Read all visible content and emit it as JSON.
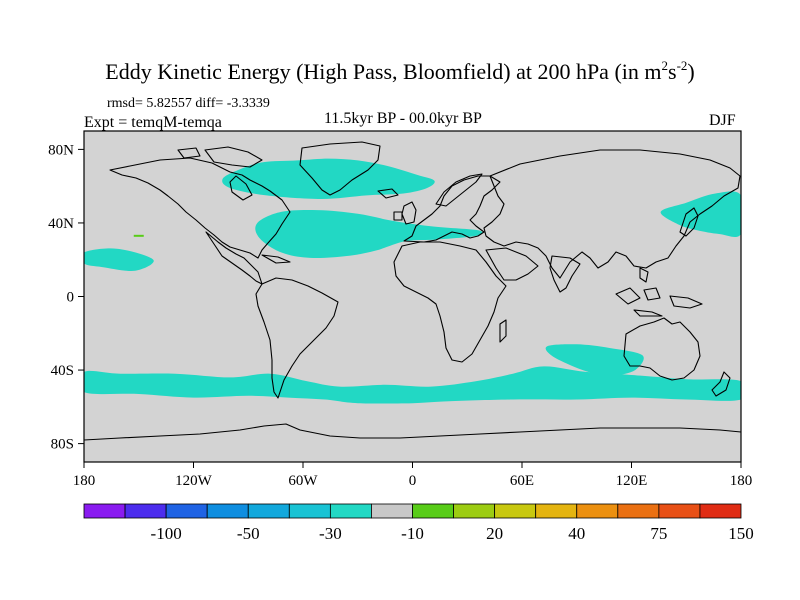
{
  "chart_data": {
    "type": "map",
    "title": "Eddy Kinetic Energy (High Pass, Bloomfield) at 200 hPa (in m",
    "title_unit_sup1": "2",
    "title_unit_mid": "s",
    "title_unit_sup2": "-2",
    "title_unit_end": ")",
    "stats_text": "rmsd= 5.82557 diff= -3.3339",
    "experiment": "Expt = temqM-temqa",
    "period": "11.5kyr BP - 00.0kyr BP",
    "season": "DJF",
    "x_ticks": [
      "180",
      "120W",
      "60W",
      "0",
      "60E",
      "120E",
      "180"
    ],
    "x_tick_values": [
      -180,
      -120,
      -60,
      0,
      60,
      120,
      180
    ],
    "y_ticks": [
      "80N",
      "40N",
      "0",
      "40S",
      "80S"
    ],
    "y_tick_values": [
      80,
      40,
      0,
      -40,
      -80
    ],
    "xlim": [
      -180,
      180
    ],
    "ylim": [
      -90,
      90
    ],
    "colorbar_labels": [
      "-100",
      "-50",
      "-30",
      "-10",
      "20",
      "40",
      "75",
      "150"
    ],
    "colorbar_colors": [
      "#8a1bf0",
      "#4c2dee",
      "#1f63e4",
      "#0f8ee0",
      "#12a8dc",
      "#19c3d4",
      "#22d8c4",
      "#c8c8c8",
      "#58cc18",
      "#9ccc12",
      "#c8c810",
      "#e4b410",
      "#ec9010",
      "#ea7012",
      "#e85016",
      "#e02c14"
    ],
    "field_background_color": "#d3d3d3",
    "negative_anomaly_color": "#22d8c4",
    "anomaly_regions": [
      {
        "name": "north-atlantic-greenland",
        "value_class": "-10",
        "lonlat": [
          [
            -104,
            64
          ],
          [
            -95,
            69
          ],
          [
            -82,
            73
          ],
          [
            -63,
            74
          ],
          [
            -46,
            75
          ],
          [
            -30,
            74
          ],
          [
            -14,
            71
          ],
          [
            3,
            66
          ],
          [
            12,
            63
          ],
          [
            8,
            59
          ],
          [
            -5,
            56
          ],
          [
            -25,
            55
          ],
          [
            -50,
            53
          ],
          [
            -80,
            55
          ],
          [
            -100,
            59
          ]
        ]
      },
      {
        "name": "north-atlantic-jet",
        "value_class": "-10",
        "lonlat": [
          [
            -85,
            40
          ],
          [
            -72,
            46
          ],
          [
            -52,
            47
          ],
          [
            -30,
            45
          ],
          [
            -10,
            41
          ],
          [
            12,
            38
          ],
          [
            36,
            36
          ],
          [
            35,
            33
          ],
          [
            14,
            31
          ],
          [
            -4,
            30
          ],
          [
            -20,
            25
          ],
          [
            -36,
            22
          ],
          [
            -56,
            21
          ],
          [
            -72,
            24
          ],
          [
            -84,
            32
          ]
        ]
      },
      {
        "name": "north-pacific-east",
        "value_class": "-10",
        "lonlat": [
          [
            -180,
            24
          ],
          [
            -162,
            26
          ],
          [
            -142,
            20
          ],
          [
            -152,
            14
          ],
          [
            -170,
            16
          ],
          [
            -180,
            18
          ]
        ]
      },
      {
        "name": "north-pacific-west",
        "value_class": "-10",
        "lonlat": [
          [
            136,
            46
          ],
          [
            150,
            51
          ],
          [
            166,
            56
          ],
          [
            180,
            55
          ],
          [
            180,
            34
          ],
          [
            168,
            34
          ],
          [
            156,
            36
          ],
          [
            146,
            39
          ]
        ]
      },
      {
        "name": "australia-southwest",
        "value_class": "-10",
        "lonlat": [
          [
            74,
            -27
          ],
          [
            90,
            -26
          ],
          [
            108,
            -28
          ],
          [
            126,
            -32
          ],
          [
            122,
            -40
          ],
          [
            110,
            -43
          ],
          [
            100,
            -42
          ],
          [
            88,
            -38
          ],
          [
            76,
            -32
          ]
        ]
      },
      {
        "name": "southern-ocean-band",
        "value_class": "-10",
        "lonlat": [
          [
            -180,
            -41
          ],
          [
            -160,
            -42
          ],
          [
            -130,
            -42
          ],
          [
            -100,
            -44
          ],
          [
            -78,
            -42
          ],
          [
            -58,
            -46
          ],
          [
            -40,
            -49
          ],
          [
            -15,
            -48
          ],
          [
            10,
            -49
          ],
          [
            35,
            -46
          ],
          [
            55,
            -42
          ],
          [
            72,
            -38
          ],
          [
            95,
            -41
          ],
          [
            125,
            -43
          ],
          [
            150,
            -45
          ],
          [
            180,
            -46
          ],
          [
            180,
            -56
          ],
          [
            150,
            -56
          ],
          [
            120,
            -55
          ],
          [
            90,
            -56
          ],
          [
            55,
            -56
          ],
          [
            20,
            -57
          ],
          [
            0,
            -58
          ],
          [
            -30,
            -58
          ],
          [
            -48,
            -56
          ],
          [
            -68,
            -55
          ],
          [
            -90,
            -54
          ],
          [
            -120,
            -55
          ],
          [
            -150,
            -53
          ],
          [
            -180,
            -52
          ]
        ]
      }
    ],
    "small_features": [
      {
        "name": "positive-dash-north-pacific",
        "value_class": "20",
        "lon": -150,
        "lat": 33
      }
    ]
  }
}
